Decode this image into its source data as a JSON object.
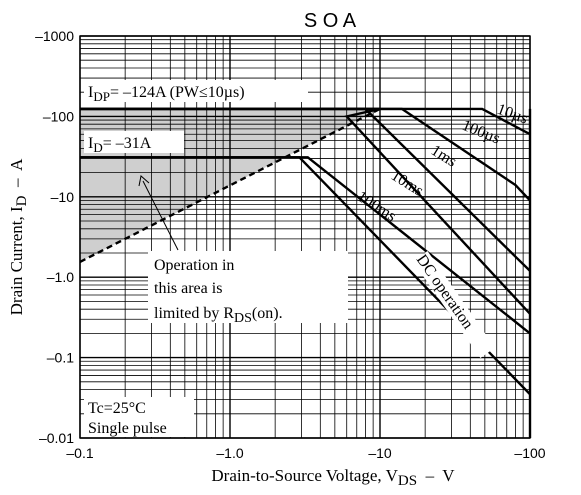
{
  "chart_data": {
    "type": "line",
    "title": "S O A",
    "xlabel": {
      "main": "Drain-to-Source Voltage, V",
      "sub": "DS",
      "tail": "  –  V"
    },
    "ylabel": {
      "main": "Drain Current, I",
      "sub": "D",
      "tail": "  –  A"
    },
    "x_scale": "log",
    "y_scale": "log",
    "xlim": [
      -0.1,
      -100
    ],
    "ylim": [
      -0.01,
      -1000
    ],
    "grid": true,
    "x_ticks": [
      {
        "value": -0.1,
        "label": "–0.1"
      },
      {
        "value": -1,
        "label": "–1.0"
      },
      {
        "value": -10,
        "label": "–10"
      },
      {
        "value": -100,
        "label": "–100"
      }
    ],
    "y_ticks": [
      {
        "value": -1000,
        "label": "–1000"
      },
      {
        "value": -100,
        "label": "–100"
      },
      {
        "value": -10,
        "label": "–10"
      },
      {
        "value": -1,
        "label": "–1.0"
      },
      {
        "value": -0.1,
        "label": "–0.1"
      },
      {
        "value": -0.01,
        "label": "–0.01"
      }
    ],
    "series": [
      {
        "name": "10µs",
        "style": "solid",
        "points": [
          [
            -0.1,
            -124
          ],
          [
            -48,
            -124
          ],
          [
            -100,
            -60
          ]
        ]
      },
      {
        "name": "100µs",
        "style": "solid",
        "points": [
          [
            -0.1,
            -124
          ],
          [
            -14,
            -124
          ],
          [
            -80,
            -14
          ],
          [
            -100,
            -9
          ]
        ]
      },
      {
        "name": "1ms",
        "style": "solid",
        "points": [
          [
            -0.1,
            -124
          ],
          [
            -8,
            -124
          ],
          [
            -80,
            -1.8
          ],
          [
            -100,
            -1.2
          ]
        ]
      },
      {
        "name": "10ms",
        "style": "solid",
        "points": [
          [
            -0.1,
            -124
          ],
          [
            -10,
            -124
          ],
          [
            -6,
            -100
          ],
          [
            -100,
            -0.35
          ]
        ]
      },
      {
        "name": "100ms",
        "style": "solid",
        "points": [
          [
            -0.1,
            -31
          ],
          [
            -3.3,
            -31
          ],
          [
            -100,
            -0.2
          ]
        ]
      },
      {
        "name": "DC operation",
        "style": "solid",
        "points": [
          [
            -0.1,
            -31
          ],
          [
            -2.9,
            -31
          ],
          [
            -100,
            -0.035
          ]
        ]
      },
      {
        "name": "R_DS(on) limit",
        "style": "dashed",
        "points": [
          [
            -0.1,
            -1.55
          ],
          [
            -10,
            -124
          ]
        ]
      }
    ],
    "limits": [
      {
        "name": "I_DP",
        "value": -124,
        "label": "I",
        "sub": "DP",
        "text": "= –124A (PW≤10µs)"
      },
      {
        "name": "I_D",
        "value": -31,
        "label": "I",
        "sub": "D",
        "text": "= –31A"
      },
      {
        "name": "V_DSS",
        "value": -100
      }
    ],
    "annotations": {
      "curve_labels": [
        "10µs",
        "100µs",
        "1ms",
        "10ms",
        "100ms",
        "DC operation"
      ],
      "region_note": {
        "line1": "Operation in",
        "line2": "this area is",
        "line3": "limited by R",
        "sub": "DS",
        "tail": "(on)."
      },
      "conditions": [
        "Tc=25°C",
        "Single pulse"
      ]
    }
  }
}
